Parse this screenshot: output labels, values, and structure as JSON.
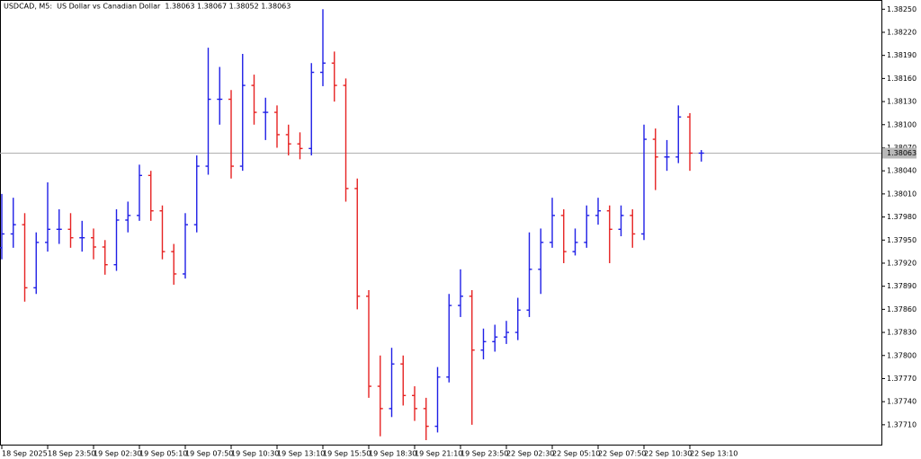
{
  "chart_data": {
    "type": "ohlc",
    "title": "USDCAD, M5:  US Dollar vs Canadian Dollar  1.38063 1.38067 1.38052 1.38063",
    "categories": [
      "18 Sep 2025",
      null,
      null,
      null,
      "18 Sep 23:50",
      null,
      null,
      null,
      "19 Sep 02:30",
      null,
      null,
      null,
      "19 Sep 05:10",
      null,
      null,
      null,
      "19 Sep 07:50",
      null,
      null,
      null,
      "19 Sep 10:30",
      null,
      null,
      null,
      "19 Sep 13:10",
      null,
      null,
      null,
      "19 Sep 15:50",
      null,
      null,
      null,
      "19 Sep 18:30",
      null,
      null,
      null,
      "19 Sep 21:10",
      null,
      null,
      null,
      "19 Sep 23:50",
      null,
      null,
      null,
      "22 Sep 02:30",
      null,
      null,
      null,
      "22 Sep 05:10",
      null,
      null,
      null,
      "22 Sep 07:50",
      null,
      null,
      null,
      "22 Sep 10:30",
      null,
      null,
      null,
      "22 Sep 13:10",
      null
    ],
    "open": [
      1.3794,
      1.37958,
      1.3797,
      1.37888,
      1.37947,
      1.37964,
      1.37964,
      1.37953,
      1.37953,
      1.37941,
      1.37918,
      1.37976,
      1.37982,
      1.38034,
      1.37988,
      1.37935,
      1.37906,
      1.3797,
      1.38046,
      1.38133,
      1.38133,
      1.38046,
      1.38151,
      1.38116,
      1.38116,
      1.38087,
      1.38075,
      1.38069,
      1.38168,
      1.3818,
      1.38151,
      1.38017,
      1.37877,
      1.3776,
      1.37731,
      1.37789,
      1.37748,
      1.37731,
      1.37708,
      1.37772,
      1.37865,
      1.37877,
      1.37807,
      1.37818,
      1.37824,
      1.3783,
      1.37859,
      1.37912,
      1.37947,
      1.37982,
      1.37935,
      1.37947,
      1.37982,
      1.37988,
      1.37964,
      1.37982,
      1.37958,
      1.38081,
      1.38058,
      1.38058,
      1.3811,
      1.38063
    ],
    "high": [
      1.3801,
      1.38005,
      1.37985,
      1.3796,
      1.38025,
      1.3799,
      1.37985,
      1.37975,
      1.37965,
      1.3795,
      1.3799,
      1.38,
      1.38048,
      1.3804,
      1.37995,
      1.37945,
      1.37985,
      1.3806,
      1.382,
      1.38175,
      1.38145,
      1.38192,
      1.38165,
      1.38135,
      1.38125,
      1.381,
      1.3809,
      1.3818,
      1.3825,
      1.38195,
      1.3816,
      1.3803,
      1.37885,
      1.378,
      1.3781,
      1.378,
      1.3776,
      1.37745,
      1.37785,
      1.3788,
      1.37912,
      1.37885,
      1.37835,
      1.3784,
      1.37845,
      1.37875,
      1.3796,
      1.37965,
      1.38005,
      1.3799,
      1.37965,
      1.37995,
      1.38005,
      1.37995,
      1.37995,
      1.3799,
      1.381,
      1.38095,
      1.3808,
      1.38125,
      1.38115,
      1.38067
    ],
    "low": [
      1.37925,
      1.3794,
      1.3787,
      1.3788,
      1.37935,
      1.37945,
      1.3794,
      1.37935,
      1.37925,
      1.37905,
      1.3791,
      1.3796,
      1.37975,
      1.37975,
      1.37925,
      1.37892,
      1.379,
      1.3796,
      1.38035,
      1.381,
      1.3803,
      1.3804,
      1.381,
      1.3808,
      1.3807,
      1.3806,
      1.38055,
      1.3806,
      1.3815,
      1.3813,
      1.38,
      1.3786,
      1.37745,
      1.37695,
      1.3772,
      1.37735,
      1.37715,
      1.3769,
      1.377,
      1.37765,
      1.3785,
      1.3771,
      1.37795,
      1.37805,
      1.37815,
      1.3782,
      1.3785,
      1.3788,
      1.3794,
      1.3792,
      1.3793,
      1.3794,
      1.3797,
      1.3792,
      1.37955,
      1.3794,
      1.3795,
      1.38015,
      1.3804,
      1.3805,
      1.3804,
      1.38052
    ],
    "close": [
      1.37958,
      1.3797,
      1.37888,
      1.37947,
      1.37964,
      1.37964,
      1.37953,
      1.37953,
      1.37941,
      1.37918,
      1.37976,
      1.37982,
      1.38034,
      1.37988,
      1.37935,
      1.37906,
      1.3797,
      1.38046,
      1.38133,
      1.38133,
      1.38046,
      1.38151,
      1.38116,
      1.38116,
      1.38087,
      1.38075,
      1.38069,
      1.38168,
      1.3818,
      1.38151,
      1.38017,
      1.37877,
      1.3776,
      1.37731,
      1.37789,
      1.37748,
      1.37731,
      1.37708,
      1.37772,
      1.37865,
      1.37877,
      1.37807,
      1.37818,
      1.37824,
      1.3783,
      1.37859,
      1.37912,
      1.37947,
      1.37982,
      1.37935,
      1.37947,
      1.37982,
      1.37988,
      1.37964,
      1.37982,
      1.37958,
      1.38081,
      1.38058,
      1.38058,
      1.3811,
      1.38063,
      1.38063
    ],
    "up_color": "#1f1fe6",
    "down_color": "#e62222",
    "ylim": [
      1.37683,
      1.38262
    ],
    "yticks": [
      {
        "value": 1.3825,
        "label": "1.38250"
      },
      {
        "value": 1.3822,
        "label": "1.38220"
      },
      {
        "value": 1.3819,
        "label": "1.38190"
      },
      {
        "value": 1.3816,
        "label": "1.38160"
      },
      {
        "value": 1.3813,
        "label": "1.38130"
      },
      {
        "value": 1.381,
        "label": "1.38100"
      },
      {
        "value": 1.3807,
        "label": "1.38070"
      },
      {
        "value": 1.3804,
        "label": "1.38040"
      },
      {
        "value": 1.3801,
        "label": "1.38010"
      },
      {
        "value": 1.3798,
        "label": "1.37980"
      },
      {
        "value": 1.3795,
        "label": "1.37950"
      },
      {
        "value": 1.3792,
        "label": "1.37920"
      },
      {
        "value": 1.3789,
        "label": "1.37890"
      },
      {
        "value": 1.3786,
        "label": "1.37860"
      },
      {
        "value": 1.3783,
        "label": "1.37830"
      },
      {
        "value": 1.378,
        "label": "1.37800"
      },
      {
        "value": 1.3777,
        "label": "1.37770"
      },
      {
        "value": 1.3774,
        "label": "1.37740"
      },
      {
        "value": 1.3771,
        "label": "1.37710"
      }
    ],
    "last_price": {
      "value": 1.38063,
      "label": "1.38063"
    },
    "grid": false
  }
}
